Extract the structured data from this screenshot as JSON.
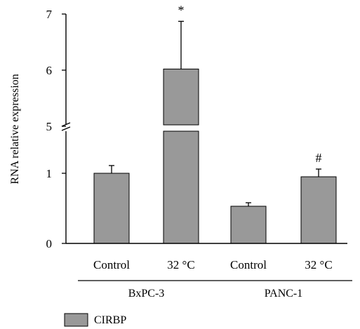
{
  "chart_data": {
    "type": "bar",
    "ylabel": "RNA relative expression",
    "y_axis_break": {
      "lower_range": [
        0,
        1.5
      ],
      "upper_range": [
        5,
        7
      ]
    },
    "yticks": [
      0,
      1,
      5,
      6,
      7
    ],
    "categories": [
      "Control",
      "32 °C",
      "Control",
      "32 °C"
    ],
    "groups": [
      {
        "label": "BxPC-3",
        "categories": [
          0,
          1
        ]
      },
      {
        "label": "PANC-1",
        "categories": [
          2,
          3
        ]
      }
    ],
    "series": [
      {
        "name": "CIRBP",
        "color": "#999999",
        "values": [
          1.0,
          6.02,
          0.53,
          0.95
        ],
        "errors": [
          0.11,
          0.85,
          0.05,
          0.11
        ]
      }
    ],
    "annotations": [
      "",
      "*",
      "",
      "#"
    ],
    "legend": {
      "position": "bottom-left",
      "entries": [
        "CIRBP"
      ]
    }
  }
}
